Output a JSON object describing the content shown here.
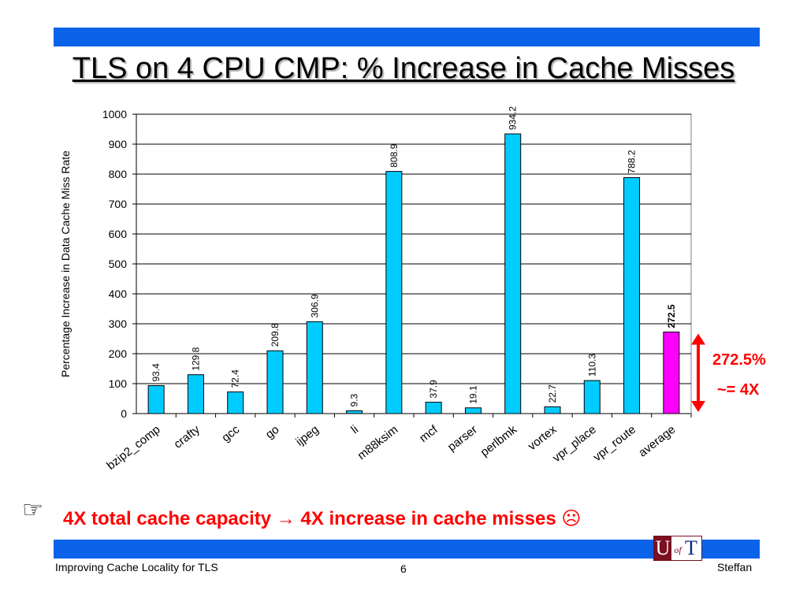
{
  "slide": {
    "title": "TLS on 4 CPU CMP: % Increase in Cache Misses",
    "bullet_text": "4X total cache capacity → 4X increase in cache misses ☹",
    "bullet_icon": "pointing-hand-icon",
    "annotation_pct": "272.5%",
    "annotation_ratio": "~= 4X",
    "footer_left": "Improving Cache Locality for TLS",
    "footer_page": "6",
    "footer_right": "Steffan",
    "logo_text": {
      "u": "U",
      "of": "of",
      "t": "T"
    },
    "colors": {
      "bars": "#00ccff",
      "highlight": "#ff00ff",
      "accent": "#ff0000",
      "band": "#0a63e8"
    }
  },
  "chart_data": {
    "type": "bar",
    "title": "",
    "xlabel": "",
    "ylabel": "Percentage Increase in Data Cache Miss Rate",
    "ylim": [
      0,
      1000
    ],
    "yticks": [
      0,
      100,
      200,
      300,
      400,
      500,
      600,
      700,
      800,
      900,
      1000
    ],
    "grid": true,
    "categories": [
      "bzip2_comp",
      "crafty",
      "gcc",
      "go",
      "ijpeg",
      "li",
      "m88ksim",
      "mcf",
      "parser",
      "perlbmk",
      "vortex",
      "vpr_place",
      "vpr_route",
      "average"
    ],
    "values": [
      93.4,
      129.8,
      72.4,
      209.8,
      306.9,
      9.3,
      808.9,
      37.9,
      19.1,
      934.2,
      22.7,
      110.3,
      788.2,
      272.5
    ],
    "labels": [
      "93.4",
      "129.8",
      "72.4",
      "209.8",
      "306.9",
      "9.3",
      "808.9",
      "37.9",
      "19.1",
      "934.2",
      "22.7",
      "110.3",
      "788.2",
      "272.5"
    ],
    "highlight_category": "average"
  }
}
